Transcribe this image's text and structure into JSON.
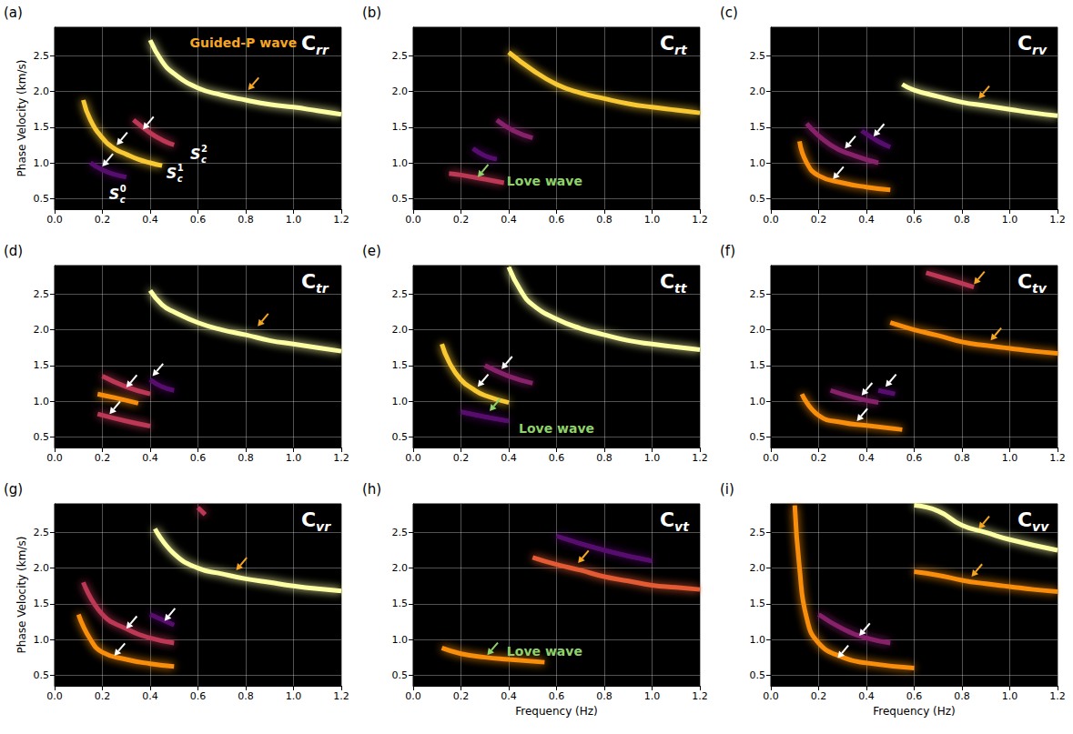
{
  "chart_data": {
    "type": "line",
    "grid": true,
    "xlim": [
      0,
      1.2
    ],
    "xticks": [
      {
        "value": 0,
        "label": "0.0"
      },
      0.2,
      0.4,
      0.6,
      0.8,
      {
        "value": 1,
        "label": "1.0"
      },
      1.2
    ],
    "ylim": [
      0.35,
      2.9
    ],
    "yticks": [
      0.5,
      {
        "value": 1,
        "label": "1.0"
      },
      1.5,
      {
        "value": 2,
        "label": "2.0"
      },
      2.5
    ],
    "panels": [
      {
        "label": "(a)",
        "title": {
          "text": "C",
          "subscript": "rr"
        },
        "ylabel": "Phase Velocity (km/s)",
        "series": [
          {
            "color": "#fcffa4",
            "x": [
              0.4,
              0.45,
              0.5,
              0.6,
              0.7,
              0.8,
              0.9,
              1.0,
              1.1,
              1.2
            ],
            "values": [
              2.72,
              2.42,
              2.25,
              2.05,
              1.95,
              1.88,
              1.82,
              1.78,
              1.73,
              1.68
            ]
          },
          {
            "color": "#f8c932",
            "x": [
              0.12,
              0.15,
              0.2,
              0.25,
              0.3,
              0.35,
              0.4,
              0.45
            ],
            "values": [
              1.88,
              1.6,
              1.35,
              1.2,
              1.12,
              1.05,
              1.0,
              0.96
            ]
          },
          {
            "color": "#bc3754",
            "x": [
              0.33,
              0.4,
              0.45,
              0.5
            ],
            "values": [
              1.6,
              1.42,
              1.32,
              1.25
            ]
          },
          {
            "color": "#57106e",
            "x": [
              0.15,
              0.2,
              0.25,
              0.3
            ],
            "values": [
              1.0,
              0.9,
              0.84,
              0.8
            ]
          }
        ],
        "arrows": [
          {
            "x": 0.26,
            "y": 1.25,
            "color": "#ffffff"
          },
          {
            "x": 0.37,
            "y": 1.47,
            "color": "#ffffff"
          },
          {
            "x": 0.2,
            "y": 0.95,
            "color": "#ffffff"
          },
          {
            "x": 0.81,
            "y": 2.02,
            "color": "#f5a623"
          }
        ],
        "annotations": [
          {
            "x": 0.79,
            "y": 2.68,
            "text": "Guided-P wave",
            "color": "#f5a623"
          },
          {
            "x": 0.25,
            "y": 0.56,
            "text": "S",
            "subscript": "c",
            "superscript": "0",
            "color": "#ffffff"
          },
          {
            "x": 0.49,
            "y": 0.85,
            "text": "S",
            "subscript": "c",
            "superscript": "1",
            "color": "#ffffff"
          },
          {
            "x": 0.59,
            "y": 1.12,
            "text": "S",
            "subscript": "c",
            "superscript": "2",
            "color": "#ffffff"
          }
        ]
      },
      {
        "label": "(b)",
        "title": {
          "text": "C",
          "subscript": "rt"
        },
        "series": [
          {
            "color": "#f8c932",
            "x": [
              0.4,
              0.5,
              0.6,
              0.7,
              0.8,
              0.9,
              1.0,
              1.1,
              1.2
            ],
            "values": [
              2.55,
              2.3,
              2.1,
              1.98,
              1.9,
              1.83,
              1.78,
              1.74,
              1.7
            ]
          },
          {
            "color": "#87216b",
            "x": [
              0.35,
              0.42,
              0.5
            ],
            "values": [
              1.6,
              1.45,
              1.35
            ]
          },
          {
            "color": "#57106e",
            "x": [
              0.25,
              0.3,
              0.35
            ],
            "values": [
              1.2,
              1.1,
              1.05
            ]
          },
          {
            "color": "#bc3754",
            "x": [
              0.15,
              0.2,
              0.3,
              0.38
            ],
            "values": [
              0.85,
              0.83,
              0.77,
              0.72
            ]
          }
        ],
        "arrows": [
          {
            "x": 0.27,
            "y": 0.8,
            "color": "#8fd16a"
          }
        ],
        "annotations": [
          {
            "x": 0.55,
            "y": 0.74,
            "text": "Love wave",
            "color": "#8fd16a"
          }
        ]
      },
      {
        "label": "(c)",
        "title": {
          "text": "C",
          "subscript": "rv"
        },
        "series": [
          {
            "color": "#fcffa4",
            "x": [
              0.55,
              0.6,
              0.7,
              0.8,
              0.9,
              1.0,
              1.1,
              1.2
            ],
            "values": [
              2.1,
              2.02,
              1.93,
              1.85,
              1.8,
              1.75,
              1.7,
              1.66
            ]
          },
          {
            "color": "#f98e09",
            "x": [
              0.12,
              0.15,
              0.2,
              0.3,
              0.4,
              0.5
            ],
            "values": [
              1.3,
              1.0,
              0.82,
              0.72,
              0.66,
              0.62
            ]
          },
          {
            "color": "#87216b",
            "x": [
              0.15,
              0.25,
              0.35,
              0.45
            ],
            "values": [
              1.55,
              1.25,
              1.1,
              1.0
            ]
          },
          {
            "color": "#57106e",
            "x": [
              0.38,
              0.45,
              0.5
            ],
            "values": [
              1.45,
              1.3,
              1.22
            ]
          }
        ],
        "arrows": [
          {
            "x": 0.87,
            "y": 1.9,
            "color": "#f5a623"
          },
          {
            "x": 0.31,
            "y": 1.2,
            "color": "#ffffff"
          },
          {
            "x": 0.43,
            "y": 1.37,
            "color": "#ffffff"
          },
          {
            "x": 0.26,
            "y": 0.77,
            "color": "#ffffff"
          }
        ],
        "annotations": []
      },
      {
        "label": "(d)",
        "title": {
          "text": "C",
          "subscript": "tr"
        },
        "series": [
          {
            "color": "#fcffa4",
            "x": [
              0.4,
              0.45,
              0.5,
              0.6,
              0.7,
              0.8,
              0.9,
              1.0,
              1.1,
              1.2
            ],
            "values": [
              2.55,
              2.35,
              2.25,
              2.1,
              2.0,
              1.93,
              1.85,
              1.8,
              1.75,
              1.7
            ]
          },
          {
            "color": "#f98e09",
            "x": [
              0.18,
              0.25,
              0.35
            ],
            "values": [
              1.1,
              1.05,
              0.97
            ]
          },
          {
            "color": "#bc3754",
            "x": [
              0.2,
              0.3,
              0.4
            ],
            "values": [
              1.35,
              1.2,
              1.1
            ]
          },
          {
            "color": "#bc3754",
            "x": [
              0.18,
              0.3,
              0.4
            ],
            "values": [
              0.82,
              0.72,
              0.65
            ]
          },
          {
            "color": "#57106e",
            "x": [
              0.4,
              0.45,
              0.5
            ],
            "values": [
              1.3,
              1.2,
              1.15
            ]
          }
        ],
        "arrows": [
          {
            "x": 0.3,
            "y": 1.19,
            "color": "#ffffff"
          },
          {
            "x": 0.41,
            "y": 1.35,
            "color": "#ffffff"
          },
          {
            "x": 0.23,
            "y": 0.82,
            "color": "#ffffff"
          },
          {
            "x": 0.85,
            "y": 2.05,
            "color": "#f5a623"
          }
        ],
        "annotations": []
      },
      {
        "label": "(e)",
        "title": {
          "text": "C",
          "subscript": "tt"
        },
        "series": [
          {
            "color": "#fcffa4",
            "x": [
              0.4,
              0.45,
              0.5,
              0.6,
              0.7,
              0.8,
              0.9,
              1.0,
              1.1,
              1.2
            ],
            "values": [
              2.88,
              2.55,
              2.35,
              2.15,
              2.02,
              1.93,
              1.85,
              1.8,
              1.76,
              1.72
            ]
          },
          {
            "color": "#f8c932",
            "x": [
              0.12,
              0.15,
              0.2,
              0.25,
              0.3,
              0.4
            ],
            "values": [
              1.8,
              1.55,
              1.3,
              1.17,
              1.08,
              0.98
            ]
          },
          {
            "color": "#87216b",
            "x": [
              0.3,
              0.4,
              0.5
            ],
            "values": [
              1.5,
              1.35,
              1.25
            ]
          },
          {
            "color": "#57106e",
            "x": [
              0.2,
              0.3,
              0.4
            ],
            "values": [
              0.85,
              0.78,
              0.72
            ]
          }
        ],
        "arrows": [
          {
            "x": 0.27,
            "y": 1.2,
            "color": "#ffffff"
          },
          {
            "x": 0.37,
            "y": 1.45,
            "color": "#ffffff"
          },
          {
            "x": 0.32,
            "y": 0.86,
            "color": "#8fd16a"
          }
        ],
        "annotations": [
          {
            "x": 0.6,
            "y": 0.62,
            "text": "Love wave",
            "color": "#8fd16a"
          }
        ]
      },
      {
        "label": "(f)",
        "title": {
          "text": "C",
          "subscript": "tv"
        },
        "series": [
          {
            "color": "#bc3754",
            "x": [
              0.65,
              0.75,
              0.85
            ],
            "values": [
              2.8,
              2.7,
              2.6
            ]
          },
          {
            "color": "#f98e09",
            "x": [
              0.5,
              0.6,
              0.7,
              0.8,
              0.9,
              1.0,
              1.1,
              1.2
            ],
            "values": [
              2.1,
              2.0,
              1.92,
              1.83,
              1.78,
              1.74,
              1.7,
              1.67
            ]
          },
          {
            "color": "#f98e09",
            "x": [
              0.13,
              0.2,
              0.3,
              0.4,
              0.55
            ],
            "values": [
              1.1,
              0.8,
              0.7,
              0.66,
              0.6
            ]
          },
          {
            "color": "#87216b",
            "x": [
              0.25,
              0.35,
              0.45
            ],
            "values": [
              1.15,
              1.05,
              0.98
            ]
          },
          {
            "color": "#57106e",
            "x": [
              0.45,
              0.52
            ],
            "values": [
              1.15,
              1.1
            ]
          }
        ],
        "arrows": [
          {
            "x": 0.85,
            "y": 2.64,
            "color": "#f5a623"
          },
          {
            "x": 0.92,
            "y": 1.85,
            "color": "#f5a623"
          },
          {
            "x": 0.38,
            "y": 1.08,
            "color": "#ffffff"
          },
          {
            "x": 0.48,
            "y": 1.2,
            "color": "#ffffff"
          },
          {
            "x": 0.36,
            "y": 0.72,
            "color": "#ffffff"
          }
        ],
        "annotations": []
      },
      {
        "label": "(g)",
        "title": {
          "text": "C",
          "subscript": "vr"
        },
        "ylabel": "Phase Velocity (km/s)",
        "series": [
          {
            "color": "#fcffa4",
            "x": [
              0.42,
              0.5,
              0.6,
              0.7,
              0.8,
              0.9,
              1.0,
              1.1,
              1.2
            ],
            "values": [
              2.55,
              2.2,
              2.0,
              1.92,
              1.85,
              1.8,
              1.75,
              1.71,
              1.68
            ]
          },
          {
            "color": "#bc3754",
            "x": [
              0.6,
              0.63
            ],
            "values": [
              2.85,
              2.75
            ]
          },
          {
            "color": "#f98e09",
            "x": [
              0.1,
              0.15,
              0.2,
              0.3,
              0.4,
              0.5
            ],
            "values": [
              1.35,
              1.0,
              0.82,
              0.72,
              0.66,
              0.62
            ]
          },
          {
            "color": "#bc3754",
            "x": [
              0.12,
              0.2,
              0.3,
              0.4,
              0.5
            ],
            "values": [
              1.8,
              1.35,
              1.15,
              1.02,
              0.95
            ]
          },
          {
            "color": "#57106e",
            "x": [
              0.4,
              0.5
            ],
            "values": [
              1.35,
              1.2
            ]
          }
        ],
        "arrows": [
          {
            "x": 0.76,
            "y": 1.97,
            "color": "#f5a623"
          },
          {
            "x": 0.3,
            "y": 1.15,
            "color": "#ffffff"
          },
          {
            "x": 0.46,
            "y": 1.26,
            "color": "#ffffff"
          },
          {
            "x": 0.25,
            "y": 0.77,
            "color": "#ffffff"
          }
        ],
        "annotations": []
      },
      {
        "label": "(h)",
        "title": {
          "text": "C",
          "subscript": "vt"
        },
        "xlabel": "Frequency (Hz)",
        "series": [
          {
            "color": "#e45a31",
            "x": [
              0.5,
              0.6,
              0.7,
              0.8,
              0.9,
              1.0,
              1.1,
              1.2
            ],
            "values": [
              2.15,
              2.05,
              1.97,
              1.88,
              1.82,
              1.76,
              1.73,
              1.7
            ]
          },
          {
            "color": "#57106e",
            "x": [
              0.6,
              0.8,
              1.0
            ],
            "values": [
              2.45,
              2.25,
              2.1
            ]
          },
          {
            "color": "#f98e09",
            "x": [
              0.12,
              0.2,
              0.3,
              0.4,
              0.55
            ],
            "values": [
              0.88,
              0.8,
              0.75,
              0.72,
              0.68
            ]
          }
        ],
        "arrows": [
          {
            "x": 0.69,
            "y": 2.07,
            "color": "#f5a623"
          },
          {
            "x": 0.31,
            "y": 0.78,
            "color": "#8fd16a"
          }
        ],
        "annotations": [
          {
            "x": 0.55,
            "y": 0.84,
            "text": "Love wave",
            "color": "#8fd16a"
          }
        ]
      },
      {
        "label": "(i)",
        "title": {
          "text": "C",
          "subscript": "vv"
        },
        "xlabel": "Frequency (Hz)",
        "series": [
          {
            "color": "#fcffa4",
            "x": [
              0.6,
              0.7,
              0.8,
              0.9,
              1.0,
              1.2
            ],
            "values": [
              2.88,
              2.8,
              2.6,
              2.5,
              2.4,
              2.25
            ]
          },
          {
            "color": "#f98e09",
            "x": [
              0.6,
              0.7,
              0.8,
              0.9,
              1.0,
              1.1,
              1.2
            ],
            "values": [
              1.95,
              1.9,
              1.83,
              1.78,
              1.74,
              1.7,
              1.67
            ]
          },
          {
            "color": "#f98e09",
            "x": [
              0.1,
              0.12,
              0.15,
              0.2,
              0.3,
              0.4,
              0.6
            ],
            "values": [
              2.88,
              2.0,
              1.3,
              0.95,
              0.75,
              0.67,
              0.6
            ]
          },
          {
            "color": "#87216b",
            "x": [
              0.2,
              0.3,
              0.4,
              0.5
            ],
            "values": [
              1.35,
              1.15,
              1.02,
              0.95
            ]
          }
        ],
        "arrows": [
          {
            "x": 0.87,
            "y": 2.55,
            "color": "#f5a623"
          },
          {
            "x": 0.84,
            "y": 1.88,
            "color": "#f5a623"
          },
          {
            "x": 0.37,
            "y": 1.05,
            "color": "#ffffff"
          },
          {
            "x": 0.28,
            "y": 0.74,
            "color": "#ffffff"
          }
        ],
        "annotations": []
      }
    ]
  }
}
